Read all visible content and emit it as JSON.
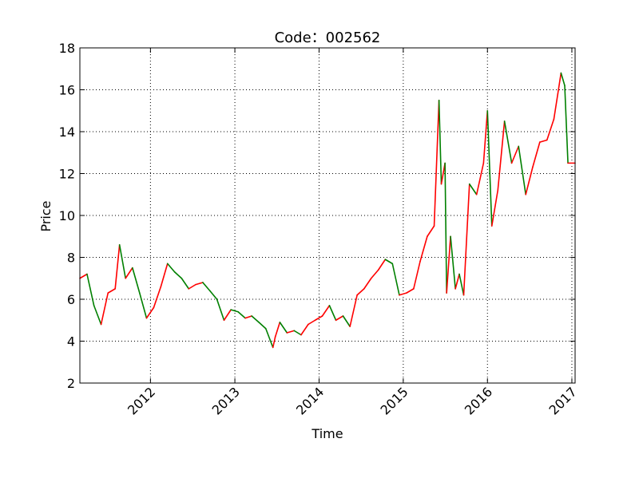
{
  "chart_data": {
    "type": "line",
    "title": "Code：002562",
    "xlabel": "Time",
    "ylabel": "Price",
    "ylim": [
      2,
      18
    ],
    "xlim": [
      "2011-03-01",
      "2017-01-15"
    ],
    "yticks": [
      2,
      4,
      6,
      8,
      10,
      12,
      14,
      16,
      18
    ],
    "xticks": [
      {
        "date": "2012-01-01",
        "label": "2012"
      },
      {
        "date": "2013-01-01",
        "label": "2013"
      },
      {
        "date": "2014-01-01",
        "label": "2014"
      },
      {
        "date": "2015-01-01",
        "label": "2015"
      },
      {
        "date": "2016-01-01",
        "label": "2016"
      },
      {
        "date": "2017-01-01",
        "label": "2017"
      }
    ],
    "grid": true,
    "colors": {
      "up": "#ff0000",
      "down": "#008000",
      "grid": "#000000",
      "axes": "#000000"
    },
    "series": [
      {
        "x": [
          "2011-03-01",
          "2011-04-01",
          "2011-05-01",
          "2011-06-01",
          "2011-07-01",
          "2011-08-01",
          "2011-08-20",
          "2011-09-15",
          "2011-10-15",
          "2011-11-15",
          "2011-12-15",
          "2012-01-15",
          "2012-02-15",
          "2012-03-15",
          "2012-04-15",
          "2012-05-15",
          "2012-06-15",
          "2012-07-15",
          "2012-08-15",
          "2012-09-15",
          "2012-10-15",
          "2012-11-15",
          "2012-12-15",
          "2013-01-15",
          "2013-02-15",
          "2013-03-15",
          "2013-04-15",
          "2013-05-15",
          "2013-06-15",
          "2013-06-25",
          "2013-07-15",
          "2013-08-15",
          "2013-09-15",
          "2013-10-15",
          "2013-11-15",
          "2013-12-15",
          "2014-01-15",
          "2014-02-15",
          "2014-03-15",
          "2014-04-15",
          "2014-05-15",
          "2014-06-15",
          "2014-07-15",
          "2014-08-15",
          "2014-09-15",
          "2014-10-15",
          "2014-11-15",
          "2014-12-15",
          "2015-01-15",
          "2015-02-15",
          "2015-03-15",
          "2015-04-15",
          "2015-05-15",
          "2015-06-05",
          "2015-06-15",
          "2015-07-01",
          "2015-07-08",
          "2015-07-25",
          "2015-08-15",
          "2015-09-01",
          "2015-09-20",
          "2015-10-15",
          "2015-11-15",
          "2015-12-15",
          "2016-01-01",
          "2016-01-20",
          "2016-02-15",
          "2016-03-15",
          "2016-04-15",
          "2016-05-15",
          "2016-06-15",
          "2016-07-15",
          "2016-08-15",
          "2016-09-15",
          "2016-10-15",
          "2016-11-01",
          "2016-11-15",
          "2016-12-01",
          "2016-12-15",
          "2017-01-15"
        ],
        "values": [
          7.0,
          7.2,
          5.7,
          4.8,
          6.3,
          6.5,
          8.6,
          7.0,
          7.5,
          6.3,
          5.1,
          5.6,
          6.6,
          7.7,
          7.3,
          7.0,
          6.5,
          6.7,
          6.8,
          6.4,
          6.0,
          5.0,
          5.5,
          5.4,
          5.1,
          5.2,
          4.9,
          4.6,
          3.7,
          4.2,
          4.9,
          4.4,
          4.5,
          4.3,
          4.8,
          5.0,
          5.2,
          5.7,
          5.0,
          5.2,
          4.7,
          6.2,
          6.5,
          7.0,
          7.4,
          7.9,
          7.7,
          6.2,
          6.3,
          6.5,
          7.8,
          9.0,
          9.5,
          15.5,
          11.5,
          12.5,
          6.3,
          9.0,
          6.5,
          7.2,
          6.2,
          11.5,
          11.0,
          12.5,
          15.0,
          9.5,
          11.2,
          14.5,
          12.5,
          13.3,
          11.0,
          12.3,
          13.5,
          13.6,
          14.6,
          15.8,
          16.8,
          16.2,
          12.5,
          12.5
        ]
      }
    ]
  }
}
